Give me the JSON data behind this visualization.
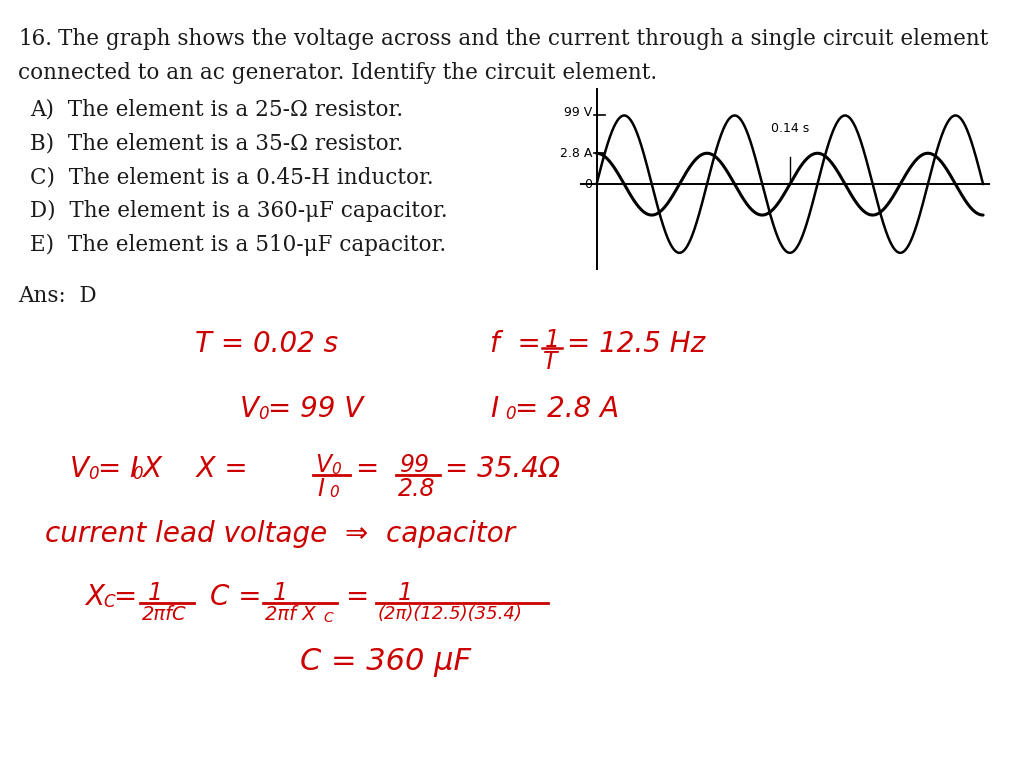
{
  "bg_color": "#ffffff",
  "question_number": "16.",
  "question_text_line1": "The graph shows the voltage across and the current through a single circuit element",
  "question_text_line2": "connected to an ac generator. Identify the circuit element.",
  "options": [
    "A)  The element is a 25-Ω resistor.",
    "B)  The element is a 35-Ω resistor.",
    "C)  The element is a 0.45-H inductor.",
    "D)  The element is a 360-μF capacitor.",
    "E)  The element is a 510-μF capacitor."
  ],
  "ans_label": "Ans:  D",
  "graph": {
    "voltage_label": "99 V",
    "current_label": "2.8 A",
    "time_label": "0.14 s",
    "zero_label": "0",
    "freq": 12.5,
    "current_phase_lead": 1.5707963
  },
  "hw_color": "#cc0000",
  "text_color": "#1a1a1a"
}
